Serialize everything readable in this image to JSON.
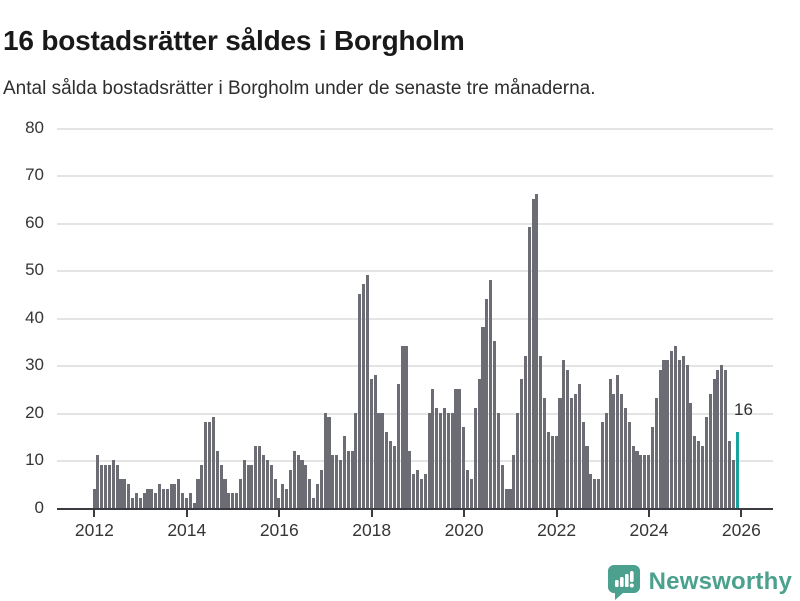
{
  "header": {
    "title": "16 bostadsrätter såldes i Borgholm",
    "subtitle": "Antal sålda bostadsrätter i Borgholm under de senaste tre månaderna."
  },
  "chart_data": {
    "type": "bar",
    "title": "16 bostadsrätter såldes i Borgholm",
    "subtitle": "Antal sålda bostadsrätter i Borgholm under de senaste tre månaderna.",
    "x_start": "2012-01",
    "x_freq": "monthly",
    "x_tick_labels": [
      "2012",
      "2014",
      "2016",
      "2018",
      "2020",
      "2022",
      "2024",
      "2026"
    ],
    "y_ticks": [
      0,
      10,
      20,
      30,
      40,
      50,
      60,
      70,
      80
    ],
    "ylim": [
      0,
      80
    ],
    "grid": "horizontal",
    "values": [
      4,
      11,
      9,
      9,
      9,
      10,
      9,
      6,
      6,
      5,
      2,
      3,
      2,
      3,
      4,
      4,
      3,
      5,
      4,
      4,
      5,
      5,
      6,
      3,
      2,
      3,
      1,
      6,
      9,
      18,
      18,
      19,
      12,
      9,
      6,
      3,
      3,
      3,
      6,
      10,
      9,
      9,
      13,
      13,
      11,
      10,
      9,
      6,
      2,
      5,
      4,
      8,
      12,
      11,
      10,
      9,
      6,
      2,
      5,
      8,
      20,
      19,
      11,
      11,
      10,
      15,
      12,
      12,
      20,
      45,
      47,
      49,
      27,
      28,
      20,
      20,
      16,
      14,
      13,
      26,
      34,
      34,
      12,
      7,
      8,
      6,
      7,
      20,
      25,
      21,
      20,
      21,
      20,
      20,
      25,
      25,
      17,
      8,
      6,
      21,
      27,
      38,
      44,
      48,
      35,
      20,
      9,
      4,
      4,
      11,
      20,
      27,
      32,
      59,
      65,
      66,
      32,
      23,
      16,
      15,
      15,
      23,
      31,
      29,
      23,
      24,
      26,
      18,
      13,
      7,
      6,
      6,
      18,
      20,
      27,
      24,
      28,
      24,
      21,
      18,
      13,
      12,
      11,
      11,
      11,
      17,
      23,
      29,
      31,
      31,
      33,
      34,
      31,
      32,
      30,
      22,
      15,
      14,
      13,
      19,
      24,
      27,
      29,
      30,
      29,
      14,
      10,
      16
    ],
    "highlight": {
      "index": 167,
      "value": 16,
      "label": "16"
    },
    "colors": {
      "bar": "#6c6c74",
      "highlight": "#18a2a0",
      "gridline": "#e4e4e4",
      "axis": "#3b3b41",
      "tick_text": "#363636"
    }
  },
  "footer": {
    "brand": "Newsworthy",
    "brand_color": "#4ba18e",
    "logo_icon": "speech-bubble-bar-chart-exclamation"
  }
}
